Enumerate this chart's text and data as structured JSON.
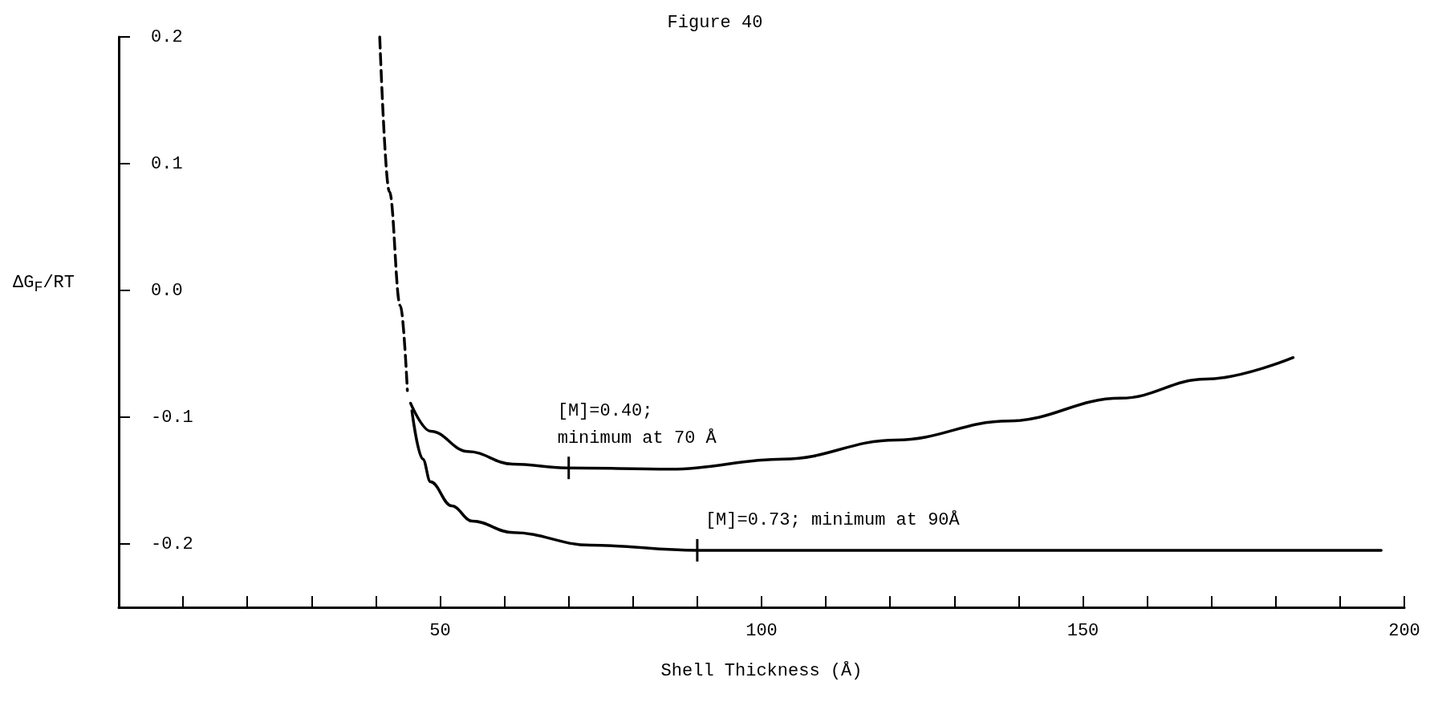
{
  "chart_data": {
    "type": "line",
    "title": "Figure 40",
    "xlabel": "Shell Thickness (Å)",
    "ylabel": "ΔG$_{F}$/RT",
    "xlim": [
      0,
      200
    ],
    "ylim": [
      -0.25,
      0.2
    ],
    "xticks": [
      {
        "value": 10,
        "label": null
      },
      {
        "value": 20,
        "label": null
      },
      {
        "value": 30,
        "label": null
      },
      {
        "value": 40,
        "label": null
      },
      50,
      {
        "value": 60,
        "label": null
      },
      {
        "value": 70,
        "label": null
      },
      {
        "value": 80,
        "label": null
      },
      {
        "value": 90,
        "label": null
      },
      100,
      {
        "value": 110,
        "label": null
      },
      {
        "value": 120,
        "label": null
      },
      {
        "value": 130,
        "label": null
      },
      {
        "value": 140,
        "label": null
      },
      150,
      {
        "value": 160,
        "label": null
      },
      {
        "value": 170,
        "label": null
      },
      {
        "value": 180,
        "label": null
      },
      {
        "value": 190,
        "label": null
      },
      200
    ],
    "yticks": [
      -0.2,
      -0.1,
      {
        "value": 0,
        "label": "0.0"
      },
      0.1,
      0.2
    ],
    "grid": false,
    "marker": "none",
    "series": [
      {
        "color": "#000000",
        "line_style": "dashed",
        "x": [
          40.6,
          42.1,
          43.8,
          44.9
        ],
        "values": [
          0.2,
          0.078,
          -0.012,
          -0.079
        ]
      },
      {
        "color": "#000000",
        "line_style": "solid",
        "x": [
          45.4,
          48.5,
          54.3,
          61.3,
          69.6,
          85.9,
          103.4,
          120.9,
          138.4,
          155.9,
          169.1,
          182.7
        ],
        "values": [
          -0.089,
          -0.111,
          -0.127,
          -0.137,
          -0.14,
          -0.141,
          -0.133,
          -0.118,
          -0.103,
          -0.085,
          -0.07,
          -0.053
        ]
      },
      {
        "color": "#000000",
        "line_style": "solid",
        "x": [
          45.6,
          47.3,
          48.5,
          51.8,
          55,
          61.3,
          73.4,
          90,
          196.4
        ],
        "values": [
          -0.095,
          -0.133,
          -0.151,
          -0.17,
          -0.182,
          -0.191,
          -0.201,
          -0.205,
          -0.205
        ]
      }
    ],
    "annotations": [
      {
        "text": "[M]=0.40;\nminimum at 70 Å",
        "x": 70,
        "y": -0.14
      },
      {
        "text": "[M]=0.73; minimum at 90Å",
        "x": 90,
        "y": -0.205
      }
    ]
  }
}
